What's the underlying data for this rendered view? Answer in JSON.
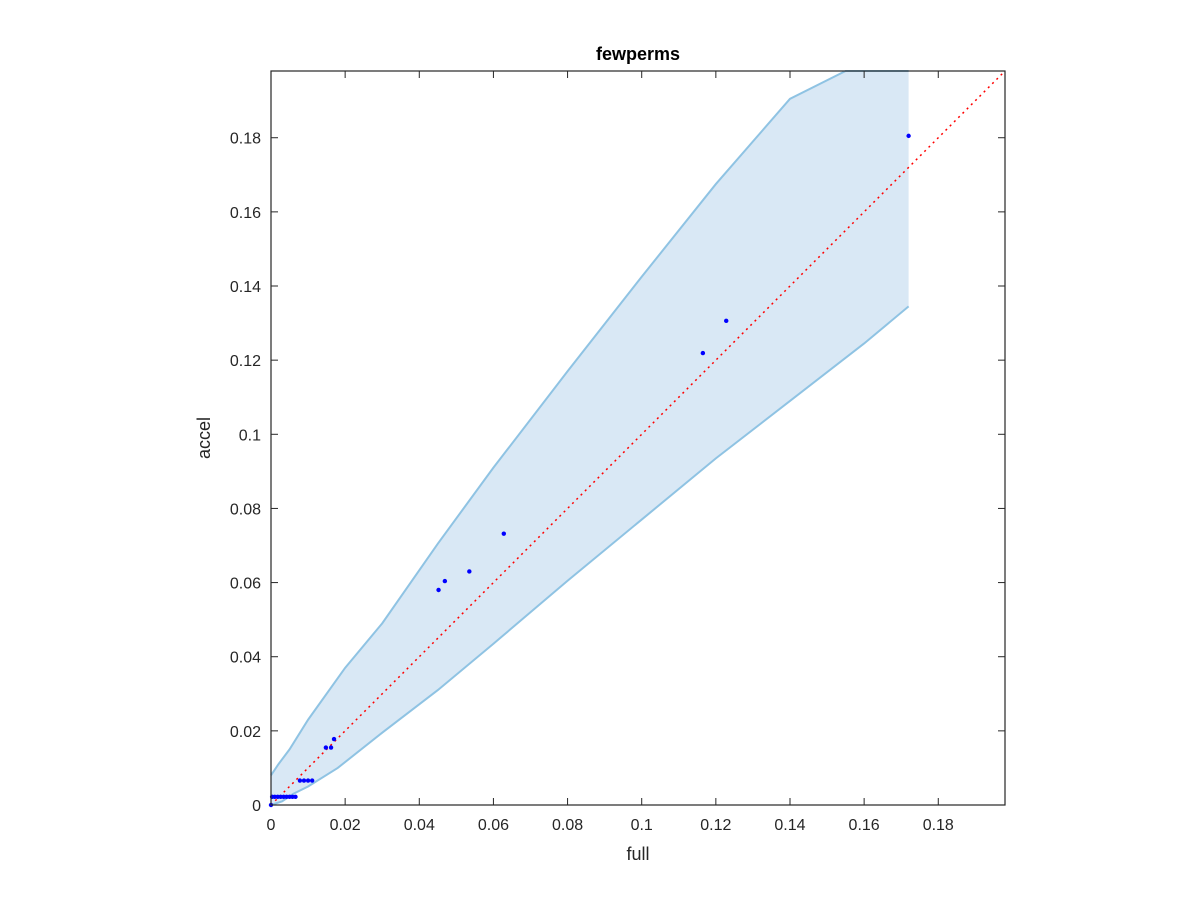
{
  "chart_data": {
    "type": "scatter",
    "title": "fewperms",
    "xlabel": "full",
    "ylabel": "accel",
    "xlim": [
      0,
      0.198
    ],
    "ylim": [
      0,
      0.198
    ],
    "x_ticks": [
      0,
      0.02,
      0.04,
      0.06,
      0.08,
      0.1,
      0.12,
      0.14,
      0.16,
      0.18
    ],
    "x_tick_labels": [
      "0",
      "0.02",
      "0.04",
      "0.06",
      "0.08",
      "0.1",
      "0.12",
      "0.14",
      "0.16",
      "0.18"
    ],
    "y_ticks": [
      0,
      0.02,
      0.04,
      0.06,
      0.08,
      0.1,
      0.12,
      0.14,
      0.16,
      0.18
    ],
    "y_tick_labels": [
      "0",
      "0.02",
      "0.04",
      "0.06",
      "0.08",
      "0.1",
      "0.12",
      "0.14",
      "0.16",
      "0.18"
    ],
    "grid": false,
    "colors": {
      "points": "#0000ff",
      "band_fill": "#d9e8f5",
      "band_edge": "#8fc3e3",
      "diagonal": "#ff0000",
      "axes": "#262626"
    },
    "band": {
      "upper": [
        [
          0,
          0.008
        ],
        [
          0.002,
          0.011
        ],
        [
          0.005,
          0.015
        ],
        [
          0.01,
          0.023
        ],
        [
          0.02,
          0.037
        ],
        [
          0.03,
          0.049
        ],
        [
          0.045,
          0.0705
        ],
        [
          0.06,
          0.091
        ],
        [
          0.08,
          0.117
        ],
        [
          0.1,
          0.1425
        ],
        [
          0.12,
          0.1675
        ],
        [
          0.14,
          0.1905
        ],
        [
          0.155,
          0.198
        ],
        [
          0.172,
          0.198
        ]
      ],
      "lower": [
        [
          0,
          0
        ],
        [
          0.003,
          0.001
        ],
        [
          0.006,
          0.003
        ],
        [
          0.01,
          0.005
        ],
        [
          0.018,
          0.01
        ],
        [
          0.03,
          0.0195
        ],
        [
          0.045,
          0.031
        ],
        [
          0.06,
          0.0435
        ],
        [
          0.08,
          0.0605
        ],
        [
          0.1,
          0.077
        ],
        [
          0.12,
          0.0935
        ],
        [
          0.14,
          0.109
        ],
        [
          0.16,
          0.1245
        ],
        [
          0.172,
          0.1345
        ]
      ]
    },
    "reference_line": {
      "style": "dotted",
      "x": [
        0,
        0.198
      ],
      "y": [
        0,
        0.198
      ]
    },
    "points": [
      {
        "x": 0,
        "y": 0
      },
      {
        "x": 0.0003,
        "y": 0.0022
      },
      {
        "x": 0.001,
        "y": 0.0022
      },
      {
        "x": 0.0018,
        "y": 0.0022
      },
      {
        "x": 0.0026,
        "y": 0.0022
      },
      {
        "x": 0.0034,
        "y": 0.0022
      },
      {
        "x": 0.0042,
        "y": 0.0022
      },
      {
        "x": 0.005,
        "y": 0.0022
      },
      {
        "x": 0.0058,
        "y": 0.0022
      },
      {
        "x": 0.0066,
        "y": 0.0022
      },
      {
        "x": 0.0078,
        "y": 0.0066
      },
      {
        "x": 0.0089,
        "y": 0.0066
      },
      {
        "x": 0.01,
        "y": 0.0066
      },
      {
        "x": 0.0111,
        "y": 0.0066
      },
      {
        "x": 0.0148,
        "y": 0.0155
      },
      {
        "x": 0.0162,
        "y": 0.0155
      },
      {
        "x": 0.017,
        "y": 0.0178
      },
      {
        "x": 0.0452,
        "y": 0.058
      },
      {
        "x": 0.0469,
        "y": 0.0604
      },
      {
        "x": 0.0535,
        "y": 0.063
      },
      {
        "x": 0.0628,
        "y": 0.0732
      },
      {
        "x": 0.1165,
        "y": 0.1219
      },
      {
        "x": 0.1228,
        "y": 0.1306
      },
      {
        "x": 0.172,
        "y": 0.1805
      }
    ]
  }
}
